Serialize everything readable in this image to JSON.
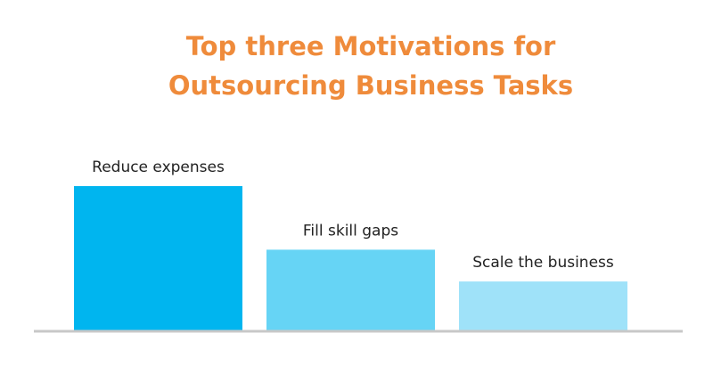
{
  "chart_data": {
    "type": "bar",
    "title": "Top three Motivations for Outsourcing Business Tasks",
    "categories": [
      "Reduce expenses",
      "Fill skill gaps",
      "Scale the business"
    ],
    "values": [
      59,
      33,
      20
    ],
    "colors": [
      "#00b5ef",
      "#66d4f5",
      "#9fe2f9"
    ],
    "title_color": "#ef8b3b"
  }
}
